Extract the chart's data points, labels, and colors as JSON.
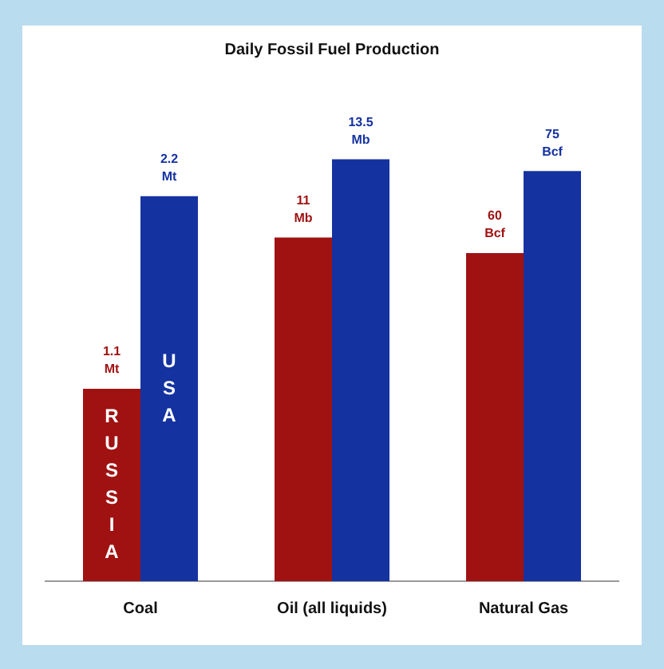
{
  "chart_data": [
    {
      "type": "bar",
      "legend": false,
      "categories": [
        "Coal"
      ],
      "series": [
        {
          "name": "RUSSIA",
          "color": "#a01212",
          "values": [
            1.1
          ],
          "value_labels": [
            "1.1 Mt"
          ]
        },
        {
          "name": "USA",
          "color": "#1432a0",
          "values": [
            2.2
          ],
          "value_labels": [
            "2.2 Mt"
          ]
        }
      ]
    },
    {
      "type": "bar",
      "title": "Daily Fossil Fuel Production",
      "legend": false,
      "categories": [
        "Oil (all liquids)"
      ],
      "series": [
        {
          "color": "#a01212",
          "values": [
            11
          ],
          "value_labels": [
            "11 Mb"
          ]
        },
        {
          "color": "#1432a0",
          "values": [
            13.5
          ],
          "value_labels": [
            "13.5 Mb"
          ]
        }
      ]
    },
    {
      "type": "bar",
      "legend": false,
      "categories": [
        "Natural Gas"
      ],
      "series": [
        {
          "color": "#a01212",
          "values": [
            60
          ],
          "value_labels": [
            "60 Bcf"
          ]
        },
        {
          "color": "#1432a0",
          "values": [
            75
          ],
          "value_labels": [
            "75 Bcf"
          ]
        }
      ]
    }
  ]
}
